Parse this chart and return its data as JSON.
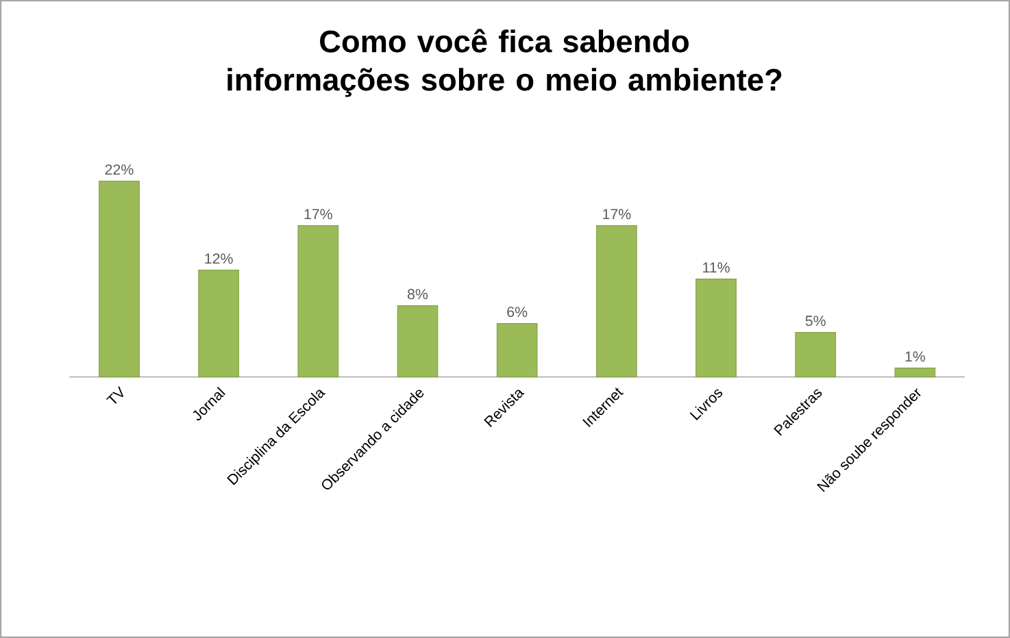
{
  "chart_data": {
    "type": "bar",
    "title": "Como você fica sabendo informações sobre o meio ambiente?",
    "categories": [
      "TV",
      "Jornal",
      "Disciplina da Escola",
      "Observando a cidade",
      "Revista",
      "Internet",
      "Livros",
      "Palestras",
      "Não soube responder"
    ],
    "values": [
      22,
      12,
      17,
      8,
      6,
      17,
      11,
      5,
      1
    ],
    "value_labels": [
      "22%",
      "12%",
      "17%",
      "8%",
      "6%",
      "17%",
      "11%",
      "5%",
      "1%"
    ],
    "color": "#9bbb59"
  }
}
